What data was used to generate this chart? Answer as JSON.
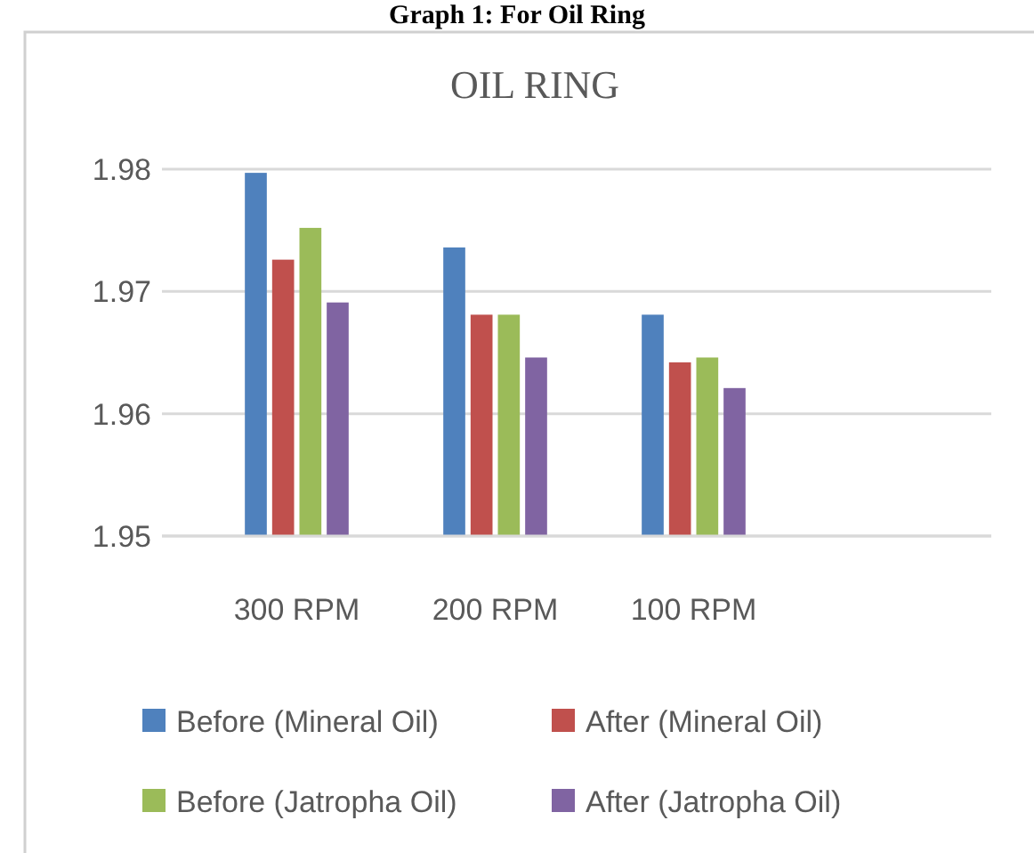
{
  "chart_data": {
    "type": "bar",
    "title": "OIL RING",
    "annotations": [
      "Graph 1: For Oil Ring"
    ],
    "categories": [
      "300 RPM",
      "200 RPM",
      "100 RPM",
      null
    ],
    "series": [
      {
        "name": "Before (Mineral Oil)",
        "color": "#4f81bd",
        "values": [
          1.9797,
          1.9736,
          1.9681,
          null
        ]
      },
      {
        "name": "After (Mineral Oil)",
        "color": "#c0504d",
        "values": [
          1.9726,
          1.9681,
          1.9642,
          null
        ]
      },
      {
        "name": "Before (Jatropha Oil)",
        "color": "#9bbb59",
        "values": [
          1.9752,
          1.9681,
          1.9646,
          null
        ]
      },
      {
        "name": "After (Jatropha Oil)",
        "color": "#8064a2",
        "values": [
          1.9691,
          1.9646,
          1.9621,
          null
        ]
      }
    ],
    "ylim": [
      1.95,
      1.98
    ],
    "yticks": [
      1.95,
      1.96,
      1.97,
      1.98
    ],
    "grid": "y",
    "legend": "bottom"
  }
}
